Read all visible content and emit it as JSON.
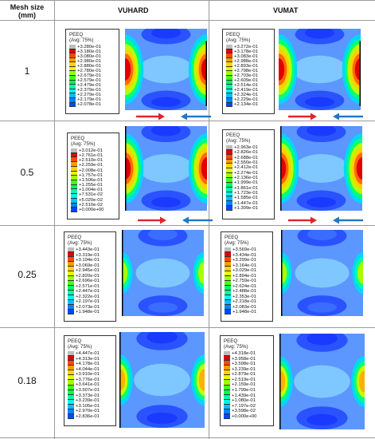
{
  "header": {
    "col1_line1": "Mesh size",
    "col1_line2": "(mm)",
    "col2": "VUHARD",
    "col3": "VUMAT"
  },
  "legend_common": {
    "title": "PEEQ",
    "subtitle": "(Avg: 75%)"
  },
  "colors": [
    "#bdbdbd",
    "#e00000",
    "#ff4a00",
    "#ff9a00",
    "#ffd400",
    "#e6ff00",
    "#a0ff00",
    "#45ff1a",
    "#00ff5a",
    "#00ffaa",
    "#00f5f0",
    "#00c0ff",
    "#0085ff",
    "#0048ff",
    "#0010e6",
    "#000050"
  ],
  "arrow_colors": {
    "left_arrow": "#e0232a",
    "right_arrow": "#1f78c8"
  },
  "rows": [
    {
      "mesh": "1",
      "vuhard": {
        "values": [
          "+3.280e-01",
          "+3.180e-01",
          "+3.080e-01",
          "+2.980e-01",
          "+2.880e-01",
          "+2.780e-01",
          "+2.679e-01",
          "+2.579e-01",
          "+2.479e-01",
          "+2.379e-01",
          "+2.279e-01",
          "+2.179e-01",
          "+2.078e-01"
        ]
      },
      "vumat": {
        "values": [
          "+3.272e-01",
          "+3.178e-01",
          "+3.083e-01",
          "+2.988e-01",
          "+2.893e-01",
          "+2.798e-01",
          "+2.703e-01",
          "+2.609e-01",
          "+2.514e-01",
          "+2.419e-01",
          "+2.324e-01",
          "+2.229e-01",
          "+2.134e-01"
        ]
      }
    },
    {
      "mesh": "0.5",
      "vuhard": {
        "values": [
          "+3.012e-01",
          "+2.761e-01",
          "+2.510e-01",
          "+2.259e-01",
          "+2.008e-01",
          "+1.757e-01",
          "+1.506e-01",
          "+1.255e-01",
          "+1.004e-01",
          "+7.531e-02",
          "+5.020e-02",
          "+2.510e-02",
          "+0.000e+00"
        ]
      },
      "vumat": {
        "values": [
          "+2.963e-01",
          "+2.826e-01",
          "+2.688e-01",
          "+2.550e-01",
          "+2.412e-01",
          "+2.274e-01",
          "+2.136e-01",
          "+1.999e-01",
          "+1.861e-01",
          "+1.723e-01",
          "+1.585e-01",
          "+1.447e-01",
          "+1.309e-01"
        ]
      }
    },
    {
      "mesh": "0.25",
      "vuhard": {
        "values": [
          "+3.443e-01",
          "+3.319e-01",
          "+3.194e-01",
          "+3.069e-01",
          "+2.945e-01",
          "+2.820e-01",
          "+2.696e-01",
          "+2.571e-01",
          "+2.447e-01",
          "+2.322e-01",
          "+2.197e-01",
          "+2.073e-01",
          "+1.948e-01"
        ]
      },
      "vumat": {
        "values": [
          "+3.569e-01",
          "+3.434e-01",
          "+3.299e-01",
          "+3.164e-01",
          "+3.029e-01",
          "+2.894e-01",
          "+2.759e-01",
          "+2.624e-01",
          "+2.488e-01",
          "+2.353e-01",
          "+2.218e-01",
          "+2.083e-01",
          "+1.948e-01"
        ]
      }
    },
    {
      "mesh": "0.18",
      "vuhard": {
        "values": [
          "+4.447e-01",
          "+4.313e-01",
          "+4.178e-01",
          "+4.044e-01",
          "+3.910e-01",
          "+3.776e-01",
          "+3.641e-01",
          "+3.507e-01",
          "+3.373e-01",
          "+3.239e-01",
          "+3.105e-01",
          "+2.970e-01",
          "+2.836e-01"
        ]
      },
      "vumat": {
        "values": [
          "+4.318e-01",
          "+3.958e-01",
          "+3.598e-01",
          "+3.239e-01",
          "+2.879e-01",
          "+2.519e-01",
          "+2.159e-01",
          "+1.799e-01",
          "+1.439e-01",
          "+1.080e-01",
          "+7.197e-02",
          "+3.598e-02",
          "+0.000e+00"
        ]
      }
    }
  ]
}
